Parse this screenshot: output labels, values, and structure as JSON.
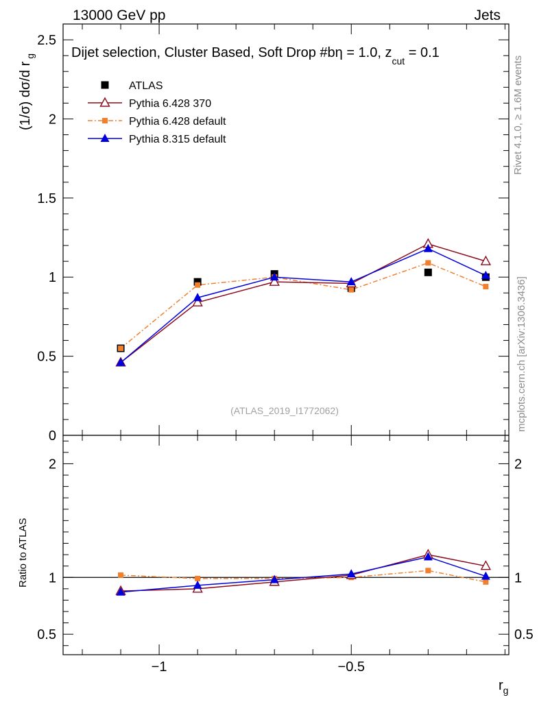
{
  "header": {
    "left": "13000 GeV pp",
    "right": "Jets"
  },
  "side_text": {
    "rivet": "Rivet 4.1.0, ≥ 1.6M events",
    "mcplots": "mcplots.cern.ch [arXiv:1306.3436]"
  },
  "chart_data": {
    "type": "line",
    "title": "Dijet selection, Cluster Based, Soft Drop #b",
    "title_suffix": "η = 1.0, z",
    "title_sub": "cut",
    "title_end": " = 0.1",
    "analysis_id": "(ATLAS_2019_I1772062)",
    "xlabel": "r",
    "xlabel_sub": "g",
    "ylabel": "(1/σ) dσ/d r",
    "ylabel_sub": "g",
    "ratio_ylabel": "Ratio to ATLAS",
    "xlim": [
      -1.25,
      -0.09
    ],
    "ylim": [
      0,
      2.6
    ],
    "ratio_ylim": [
      0.32,
      2.25
    ],
    "x_ticks": [
      -1,
      -0.5
    ],
    "x_tick_labels": [
      "−1",
      "−0.5"
    ],
    "y_ticks": [
      0,
      0.5,
      1,
      1.5,
      2,
      2.5
    ],
    "y_tick_labels": [
      "0",
      "0.5",
      "1",
      "1.5",
      "2",
      "2.5"
    ],
    "ratio_y_ticks": [
      0.5,
      1,
      2
    ],
    "ratio_y_tick_labels": [
      "0.5",
      "1",
      "2"
    ],
    "x": [
      -1.1,
      -0.9,
      -0.7,
      -0.5,
      -0.3,
      -0.15
    ],
    "series": [
      {
        "name": "ATLAS",
        "color": "#000000",
        "marker": "square",
        "line": "none",
        "values": [
          0.55,
          0.97,
          1.02,
          0.93,
          1.03,
          1.0
        ],
        "ratio": [
          1.0,
          1.0,
          1.0,
          1.0,
          1.0,
          1.0
        ]
      },
      {
        "name": "Pythia 6.428 370",
        "color": "#8b0a1a",
        "marker": "open-triangle",
        "line": "solid",
        "values": [
          0.46,
          0.84,
          0.97,
          0.96,
          1.21,
          1.1
        ],
        "ratio": [
          0.88,
          0.9,
          0.96,
          1.02,
          1.2,
          1.1
        ]
      },
      {
        "name": "Pythia 6.428 default",
        "color": "#f07f2e",
        "marker": "small-square",
        "line": "dashdot",
        "values": [
          0.55,
          0.95,
          1.0,
          0.92,
          1.09,
          0.94
        ],
        "ratio": [
          1.02,
          0.99,
          0.99,
          1.0,
          1.06,
          0.96
        ]
      },
      {
        "name": "Pythia 8.315 default",
        "color": "#0000dd",
        "marker": "filled-triangle",
        "line": "solid",
        "values": [
          0.46,
          0.87,
          1.0,
          0.97,
          1.18,
          1.01
        ],
        "ratio": [
          0.87,
          0.93,
          0.98,
          1.03,
          1.18,
          1.01
        ]
      }
    ]
  }
}
